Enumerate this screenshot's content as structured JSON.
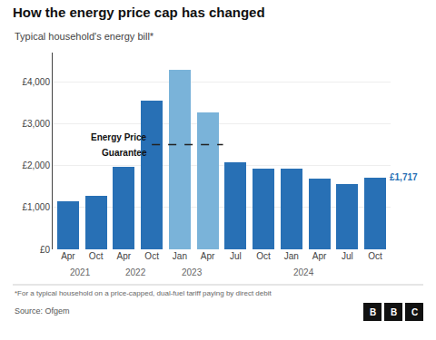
{
  "chart_data": {
    "type": "bar",
    "title": "How the energy price cap has changed",
    "subtitle": "Typical household's energy bill*",
    "categories": [
      "Apr",
      "Oct",
      "Apr",
      "Oct",
      "Jan",
      "Apr",
      "Jul",
      "Oct",
      "Jan",
      "Apr",
      "Jul",
      "Oct"
    ],
    "values": [
      1138,
      1277,
      1971,
      3549,
      4279,
      3280,
      2074,
      1923,
      1928,
      1690,
      1568,
      1717
    ],
    "colors": [
      "#2870b5",
      "#2870b5",
      "#2870b5",
      "#2870b5",
      "#7ab3d9",
      "#7ab3d9",
      "#2870b5",
      "#2870b5",
      "#2870b5",
      "#2870b5",
      "#2870b5",
      "#2870b5"
    ],
    "ylim": [
      0,
      4700
    ],
    "yticks": [
      {
        "value": 0,
        "label": "£0"
      },
      {
        "value": 1000,
        "label": "£1,000"
      },
      {
        "value": 2000,
        "label": "£2,000"
      },
      {
        "value": 3000,
        "label": "£3,000"
      },
      {
        "value": 4000,
        "label": "£4,000"
      }
    ],
    "grid": true,
    "annotations": [
      {
        "text": "2021",
        "x": 0
      },
      {
        "text": "2022",
        "x": 2
      },
      {
        "text": "2023",
        "x": 4
      },
      {
        "text": "2024",
        "x": 8
      },
      {
        "text": "£1,717",
        "x": 11,
        "y": 1717
      }
    ],
    "reference_line": {
      "y": 2500,
      "x": [
        3.0,
        5.55
      ],
      "labels": [
        "Energy Price",
        "Guarantee"
      ],
      "line_style": "dashed"
    },
    "footnote": "*For a typical household on a price-capped, dual-fuel tariff paying by direct debit",
    "source": "Source: Ofgem",
    "logo": "BBC"
  }
}
